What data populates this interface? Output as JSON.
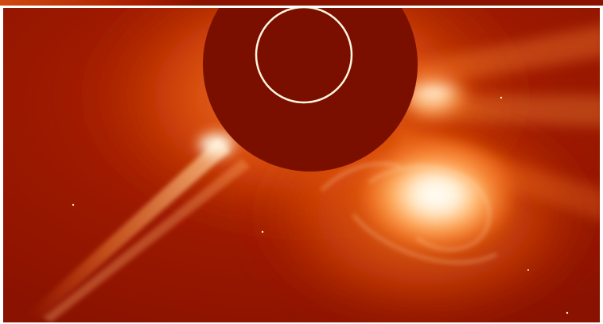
{
  "image": {
    "subject": "",
    "colors": {
      "background": "#8f1400",
      "occulter": "#7a0f00",
      "sun_outline": "#fff6e0",
      "bright_core": "#ffffff",
      "corona": "#ff7a1a"
    }
  }
}
